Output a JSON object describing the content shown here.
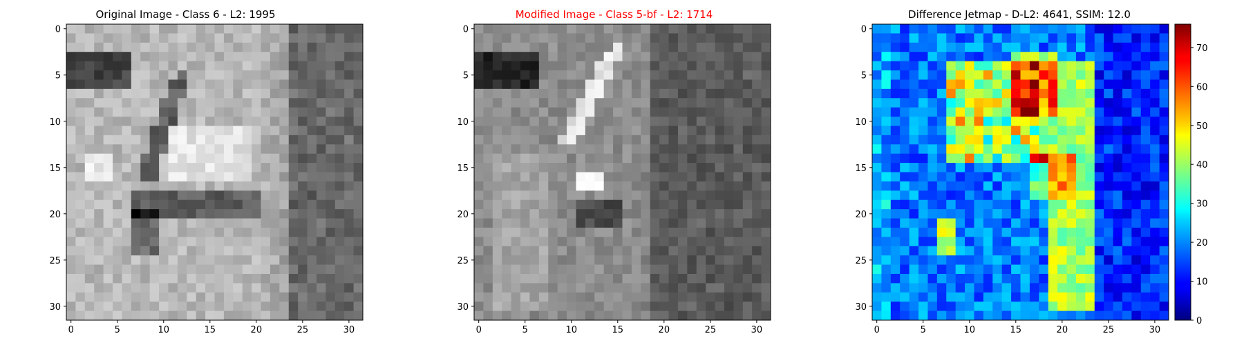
{
  "figure": {
    "panels": [
      {
        "title": "Original Image - Class 6 - L2: 1995",
        "title_color": "#000000"
      },
      {
        "title": "Modified Image - Class 5-bf - L2: 1714",
        "title_color": "#ff0000"
      },
      {
        "title": "Difference Jetmap - D-L2: 4641, SSIM: 12.0",
        "title_color": "#000000"
      }
    ]
  },
  "chart_data": [
    {
      "type": "heatmap",
      "title": "Original Image - Class 6 - L2: 1995",
      "colormap": "gray",
      "grid_size": [
        32,
        32
      ],
      "xlim": [
        -0.5,
        31.5
      ],
      "ylim": [
        31.5,
        -0.5
      ],
      "x_ticks": [
        0,
        5,
        10,
        15,
        20,
        25,
        30
      ],
      "y_ticks": [
        0,
        5,
        10,
        15,
        20,
        25,
        30
      ]
    },
    {
      "type": "heatmap",
      "title": "Modified Image - Class 5-bf - L2: 1714",
      "colormap": "gray",
      "grid_size": [
        32,
        32
      ],
      "xlim": [
        -0.5,
        31.5
      ],
      "ylim": [
        31.5,
        -0.5
      ],
      "x_ticks": [
        0,
        5,
        10,
        15,
        20,
        25,
        30
      ],
      "y_ticks": [
        0,
        5,
        10,
        15,
        20,
        25,
        30
      ]
    },
    {
      "type": "heatmap",
      "title": "Difference Jetmap - D-L2: 4641, SSIM: 12.0",
      "colormap": "jet",
      "grid_size": [
        32,
        32
      ],
      "xlim": [
        -0.5,
        31.5
      ],
      "ylim": [
        31.5,
        -0.5
      ],
      "x_ticks": [
        0,
        5,
        10,
        15,
        20,
        25,
        30
      ],
      "y_ticks": [
        0,
        5,
        10,
        15,
        20,
        25,
        30
      ],
      "colorbar": {
        "min": 0,
        "max": 76,
        "ticks": [
          0,
          10,
          20,
          30,
          40,
          50,
          60,
          70
        ]
      }
    }
  ]
}
